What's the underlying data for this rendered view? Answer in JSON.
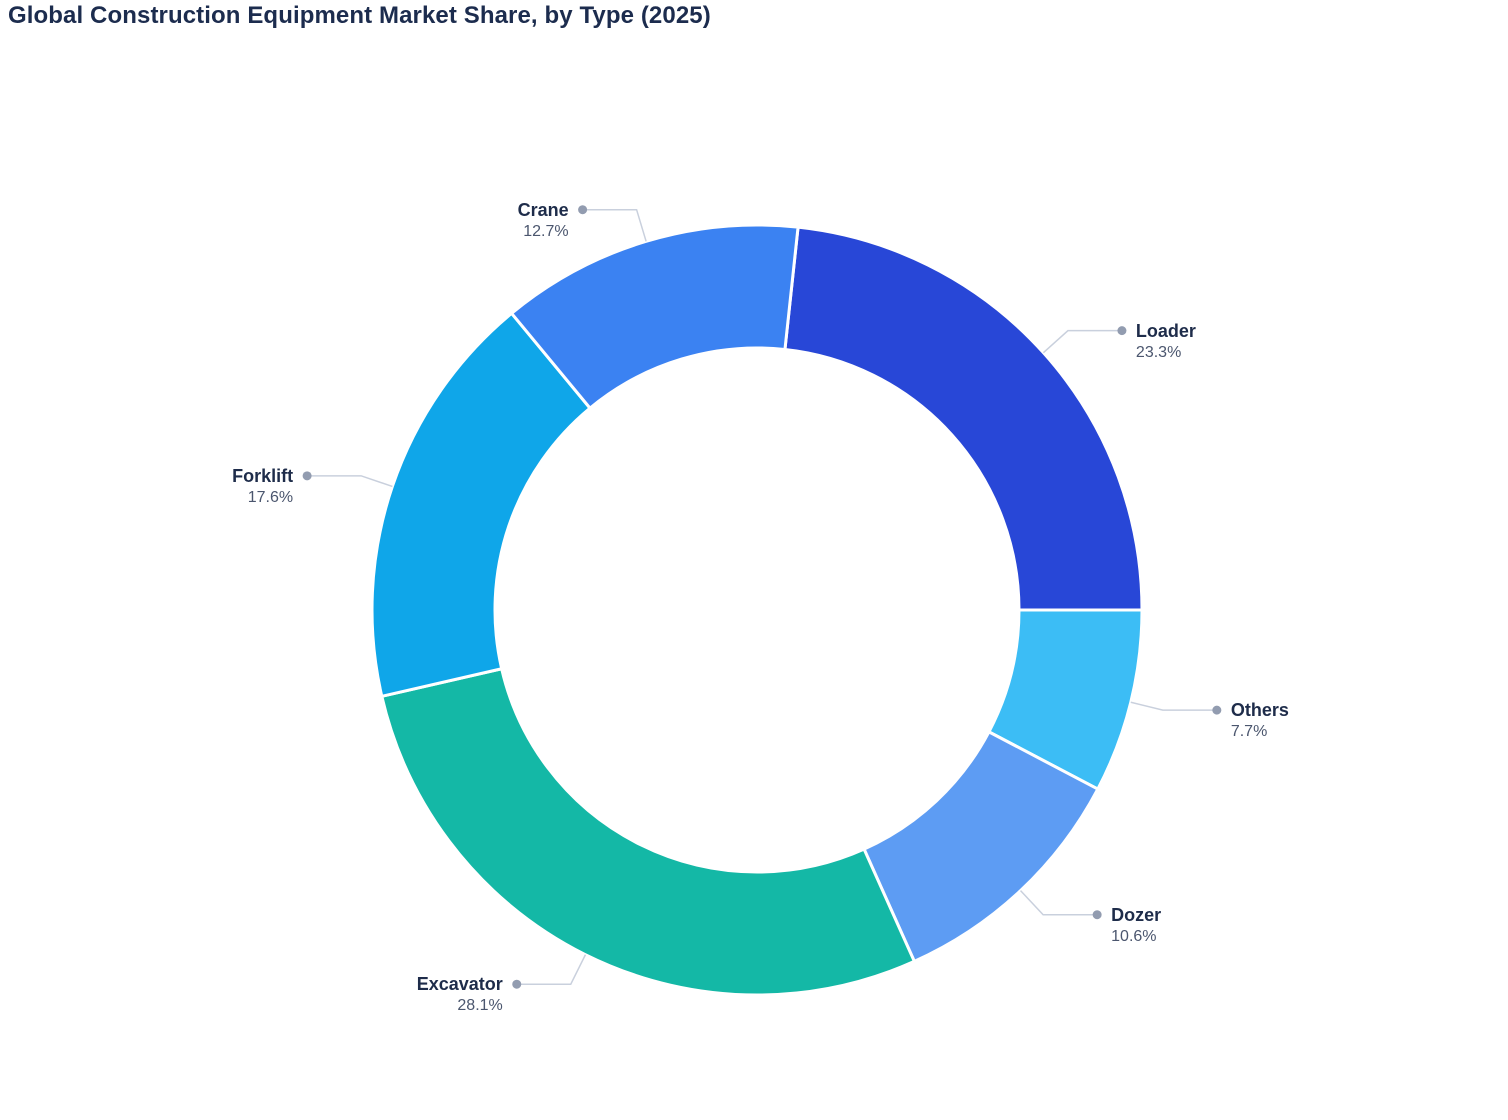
{
  "header": {
    "title": "Global Construction Equipment Market Share, by Type (2025)",
    "title_color": "#1c2c4e"
  },
  "chart_data": {
    "type": "pie",
    "subtype": "donut",
    "title": "Global Construction Equipment Market Share, by Type (2025)",
    "categories": [
      "Loader",
      "Others",
      "Dozer",
      "Excavator",
      "Forklift",
      "Crane"
    ],
    "values": [
      23.3,
      7.7,
      10.6,
      28.1,
      17.6,
      12.7
    ],
    "value_labels": [
      "23.3%",
      "7.7%",
      "10.6%",
      "28.1%",
      "17.6%",
      "12.7%"
    ],
    "unit": "%",
    "colors": [
      "#2847d7",
      "#3cbdf5",
      "#5d9cf3",
      "#14b8a6",
      "#0fa6e9",
      "#3b82f2"
    ],
    "legend_position": "none",
    "labels_outside": true,
    "label_style": {
      "name_color": "#1e2c4a",
      "value_color": "#4b566e",
      "leader_line_color": "#c9d0dd",
      "dot_color": "#929cb0"
    },
    "geometry": {
      "start_angle_deg": 83.88,
      "direction": "clockwise",
      "inner_ratio": 0.68,
      "border_color": "#ffffff"
    }
  }
}
